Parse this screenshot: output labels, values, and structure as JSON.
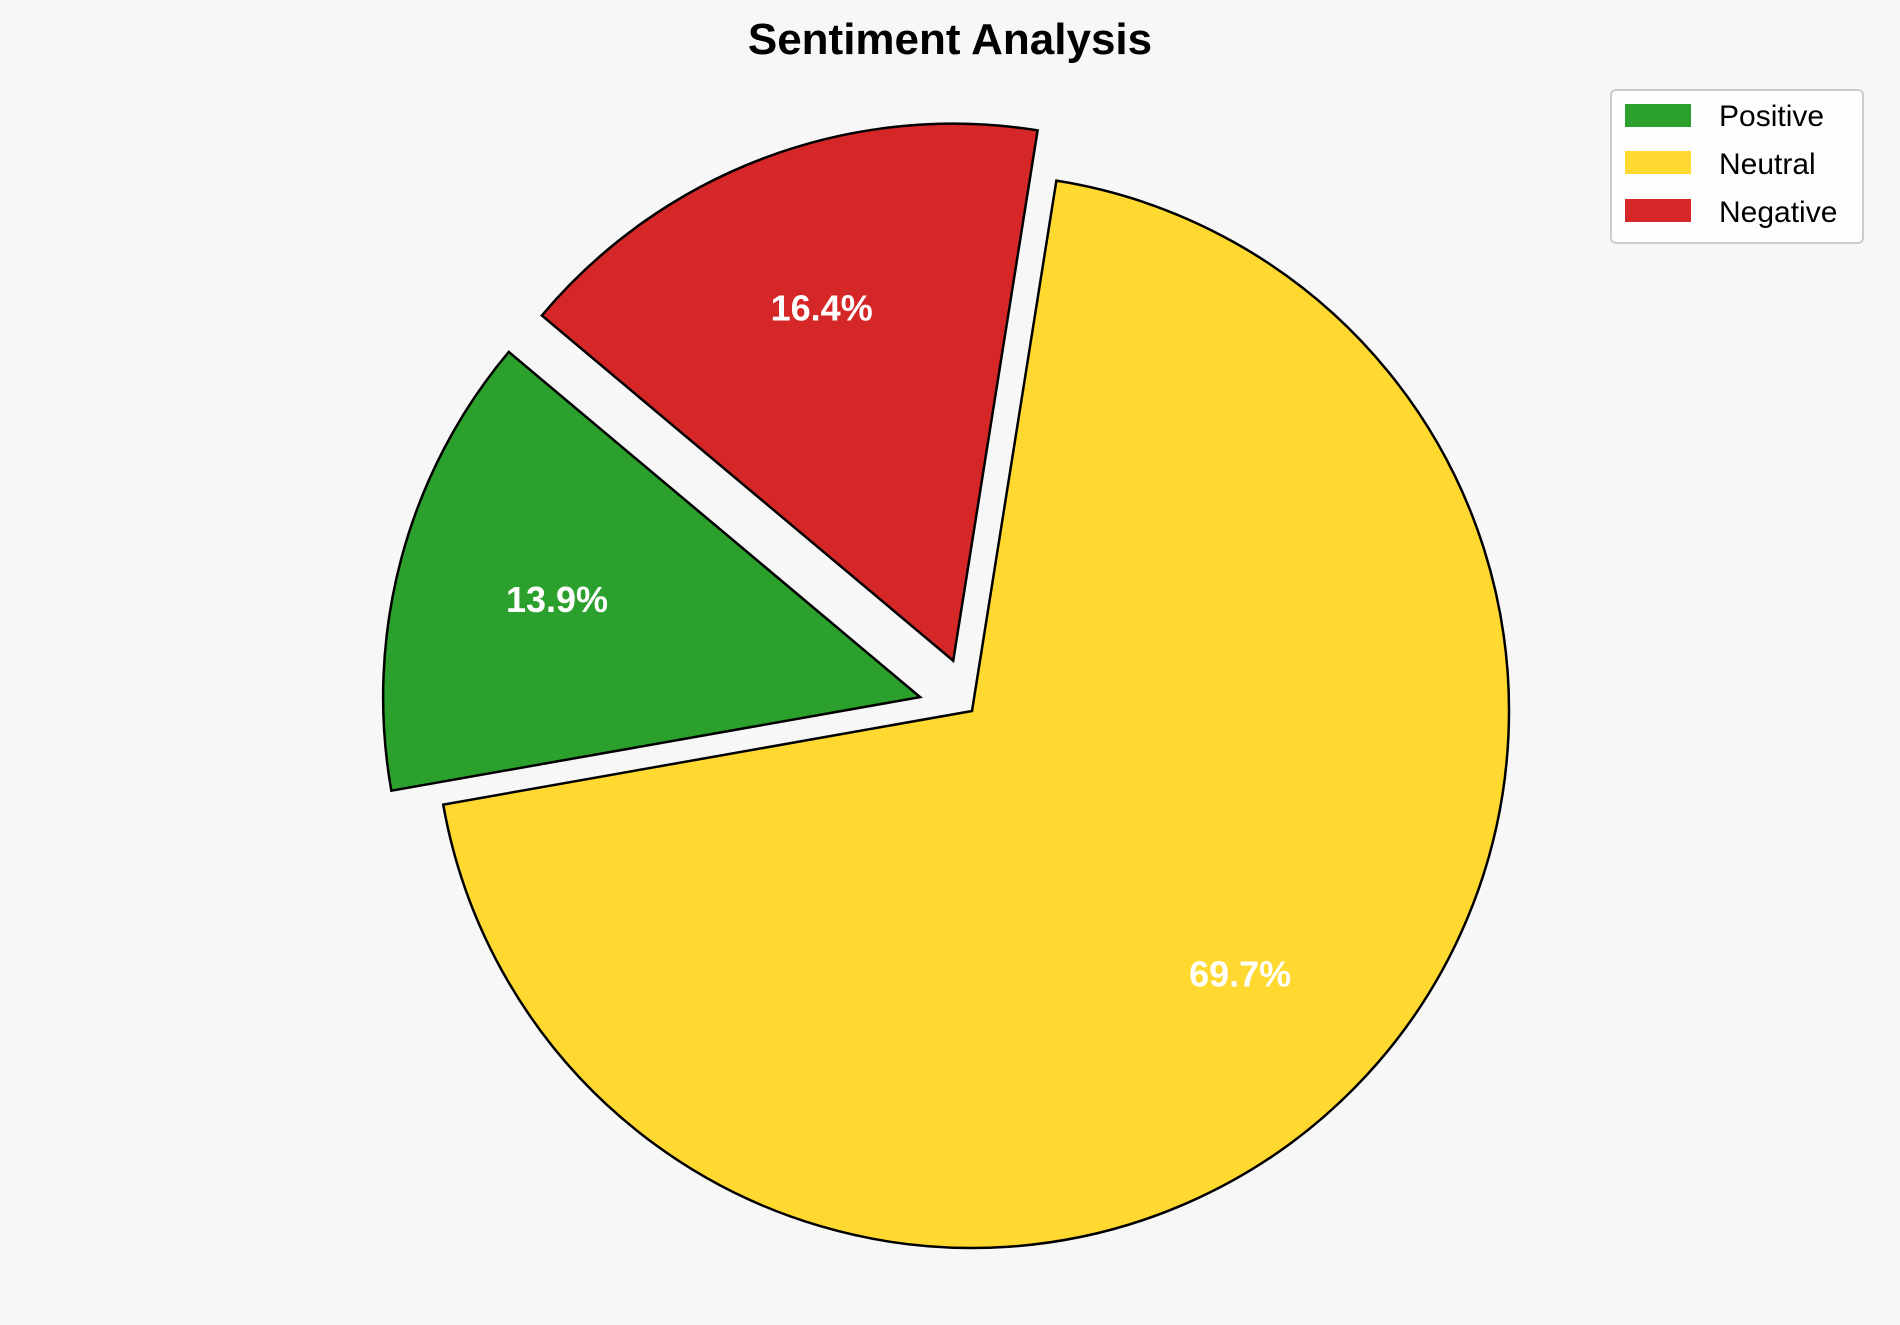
{
  "chart_data": {
    "type": "pie",
    "title": "Sentiment Analysis",
    "categories": [
      "Positive",
      "Neutral",
      "Negative"
    ],
    "values": [
      13.9,
      69.7,
      16.4
    ],
    "labels": [
      "13.9%",
      "69.7%",
      "16.4%"
    ],
    "colors": [
      "#2ca02c",
      "#ffd92f",
      "#d62728"
    ],
    "explode": [
      0.1,
      0,
      0.1
    ],
    "start_angle": 140,
    "counterclockwise": true,
    "label_color": "#ffffff",
    "edge_color": "#000000",
    "background": "#f7f7f7",
    "legend": {
      "position": "top-right",
      "entries": [
        "Positive",
        "Neutral",
        "Negative"
      ]
    }
  }
}
